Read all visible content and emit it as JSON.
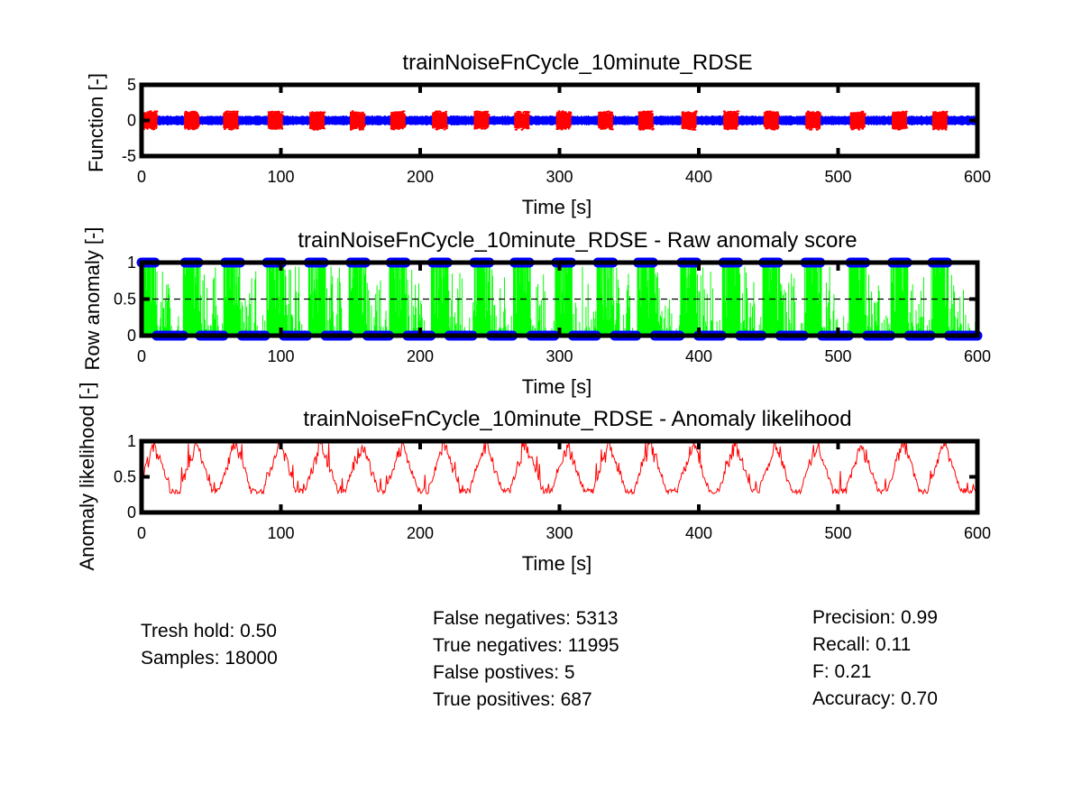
{
  "chart_data": [
    {
      "type": "line",
      "title": "trainNoiseFnCycle_10minute_RDSE",
      "xlabel": "Time [s]",
      "ylabel": "Function [-]",
      "xlim": [
        0,
        600
      ],
      "ylim": [
        -5,
        5
      ],
      "xticks": [
        0,
        100,
        200,
        300,
        400,
        500,
        600
      ],
      "yticks": [
        -5,
        0,
        5
      ],
      "grid": false,
      "series": [
        {
          "style": "blue dense oscillating signal",
          "color": "#0000ff",
          "amplitude": 0.7
        },
        {
          "style": "red point markers on anomaly bursts",
          "color": "#ff0000",
          "amplitude": 1.3,
          "burst_centers": [
            6,
            36,
            64,
            96,
            126,
            155,
            184,
            214,
            244,
            273,
            303,
            333,
            362,
            393,
            423,
            452,
            482,
            514,
            544,
            573
          ]
        }
      ]
    },
    {
      "type": "line",
      "title": "trainNoiseFnCycle_10minute_RDSE - Raw anomaly score",
      "xlabel": "Time [s]",
      "ylabel": "Row anomaly [-]",
      "xlim": [
        0,
        600
      ],
      "ylim": [
        0,
        1
      ],
      "xticks": [
        0,
        100,
        200,
        300,
        400,
        500,
        600
      ],
      "yticks": [
        0,
        0.5,
        1
      ],
      "threshold": 0.5,
      "grid": false,
      "series": [
        {
          "style": "green anomaly score lines",
          "color": "#00ff00"
        },
        {
          "style": "blue circle markers for labeled state (0 or 1)",
          "color": "#0000ff",
          "high_intervals": [
            [
              0,
              10
            ],
            [
              30,
              42
            ],
            [
              59,
              71
            ],
            [
              90,
              102
            ],
            [
              120,
              132
            ],
            [
              149,
              161
            ],
            [
              178,
              190
            ],
            [
              208,
              220
            ],
            [
              238,
              250
            ],
            [
              267,
              279
            ],
            [
              297,
              309
            ],
            [
              327,
              339
            ],
            [
              356,
              368
            ],
            [
              387,
              399
            ],
            [
              417,
              429
            ],
            [
              446,
              458
            ],
            [
              476,
              488
            ],
            [
              508,
              520
            ],
            [
              538,
              550
            ],
            [
              567,
              579
            ]
          ]
        }
      ]
    },
    {
      "type": "line",
      "title": "trainNoiseFnCycle_10minute_RDSE - Anomaly likelihood",
      "xlabel": "Time [s]",
      "ylabel": "Anomaly likelihood [-]",
      "xlim": [
        0,
        600
      ],
      "ylim": [
        0,
        1
      ],
      "xticks": [
        0,
        100,
        200,
        300,
        400,
        500,
        600
      ],
      "yticks": [
        0,
        0.5,
        1
      ],
      "grid": false,
      "series": [
        {
          "style": "red likelihood line",
          "color": "#ff0000",
          "baseline": 0.3,
          "peak_centers": [
            6,
            36,
            64,
            96,
            126,
            155,
            184,
            214,
            244,
            273,
            303,
            333,
            362,
            393,
            423,
            452,
            482,
            514,
            544,
            573
          ]
        }
      ]
    }
  ],
  "stats": {
    "threshold": "Tresh hold: 0.50",
    "samples": "Samples: 18000",
    "false_negatives": "False negatives: 5313",
    "true_negatives": "True negatives: 11995",
    "false_positives": "False postives: 5",
    "true_positives": "True positives: 687",
    "precision": "Precision: 0.99",
    "recall": "Recall: 0.11",
    "f": "F: 0.21",
    "accuracy": "Accuracy: 0.70"
  }
}
